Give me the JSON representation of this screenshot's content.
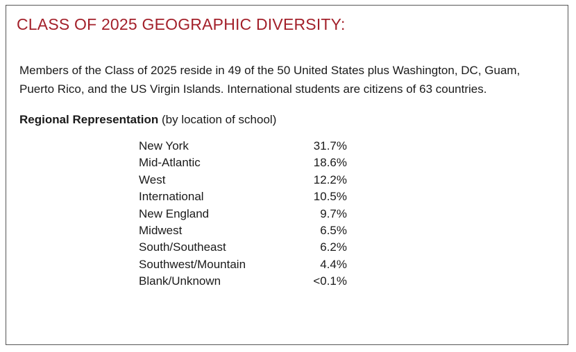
{
  "title": "CLASS OF 2025 GEOGRAPHIC DIVERSITY:",
  "intro_line1": "Members of the Class of 2025 reside in 49 of the 50 United States plus Washington, DC, Guam,",
  "intro_line2": "Puerto Rico, and the US Virgin Islands. International students are citizens of 63 countries.",
  "regional": {
    "heading_bold": "Regional Representation",
    "heading_note": " (by location of school)",
    "rows": [
      {
        "region": "New York",
        "percent": "31.7%"
      },
      {
        "region": "Mid-Atlantic",
        "percent": "18.6%"
      },
      {
        "region": "West",
        "percent": "12.2%"
      },
      {
        "region": "International",
        "percent": "10.5%"
      },
      {
        "region": "New England",
        "percent": "9.7%"
      },
      {
        "region": "Midwest",
        "percent": "6.5%"
      },
      {
        "region": "South/Southeast",
        "percent": "6.2%"
      },
      {
        "region": "Southwest/Mountain",
        "percent": "4.4%"
      },
      {
        "region": "Blank/Unknown",
        "percent": "<0.1%"
      }
    ]
  },
  "colors": {
    "title": "#a3202a",
    "border": "#555555",
    "text": "#1a1a1a"
  }
}
